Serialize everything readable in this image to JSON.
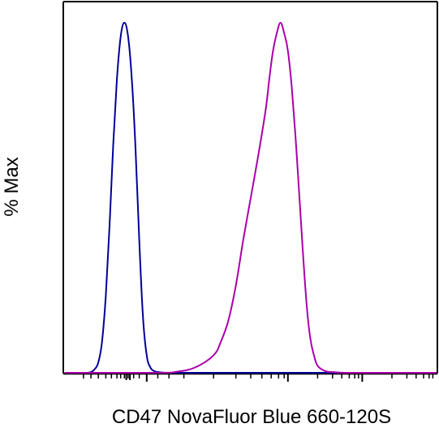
{
  "chart_data": {
    "type": "line",
    "title": "",
    "xlabel": "CD47 NovaFluor Blue 660-120S",
    "ylabel": "% Max",
    "xlim": [
      0,
      100
    ],
    "ylim": [
      0,
      100
    ],
    "x_scale": "biexponential",
    "y_ticks": false,
    "legend": "none",
    "series": [
      {
        "color": "#000099",
        "x": [
          0,
          4,
          6,
          7,
          8,
          9,
          10,
          11,
          12,
          13,
          14,
          15,
          16,
          17,
          18,
          19,
          20,
          21,
          22,
          23,
          24,
          25,
          27,
          30,
          40,
          60,
          80,
          100
        ],
        "y": [
          0,
          0,
          0,
          0.2,
          1,
          3,
          9,
          22,
          42,
          65,
          84,
          96,
          100,
          96,
          84,
          64,
          38,
          16,
          5,
          1.5,
          0.5,
          0.2,
          0,
          0,
          0,
          0,
          0,
          0
        ]
      },
      {
        "color": "#aa00aa",
        "x": [
          0,
          25,
          30,
          35,
          40,
          42,
          44,
          46,
          48,
          50,
          52,
          54,
          55,
          56,
          57,
          58,
          59,
          60,
          61,
          62,
          63,
          64,
          65,
          66,
          67,
          68,
          70,
          72,
          75,
          80,
          100
        ],
        "y": [
          0,
          0,
          0.3,
          1.5,
          5,
          9,
          15,
          25,
          38,
          50,
          62,
          75,
          84,
          92,
          97,
          100,
          97,
          92,
          82,
          68,
          52,
          35,
          20,
          10,
          5,
          2,
          0.5,
          0.2,
          0,
          0,
          0
        ]
      }
    ],
    "axis_color": "#000000"
  }
}
